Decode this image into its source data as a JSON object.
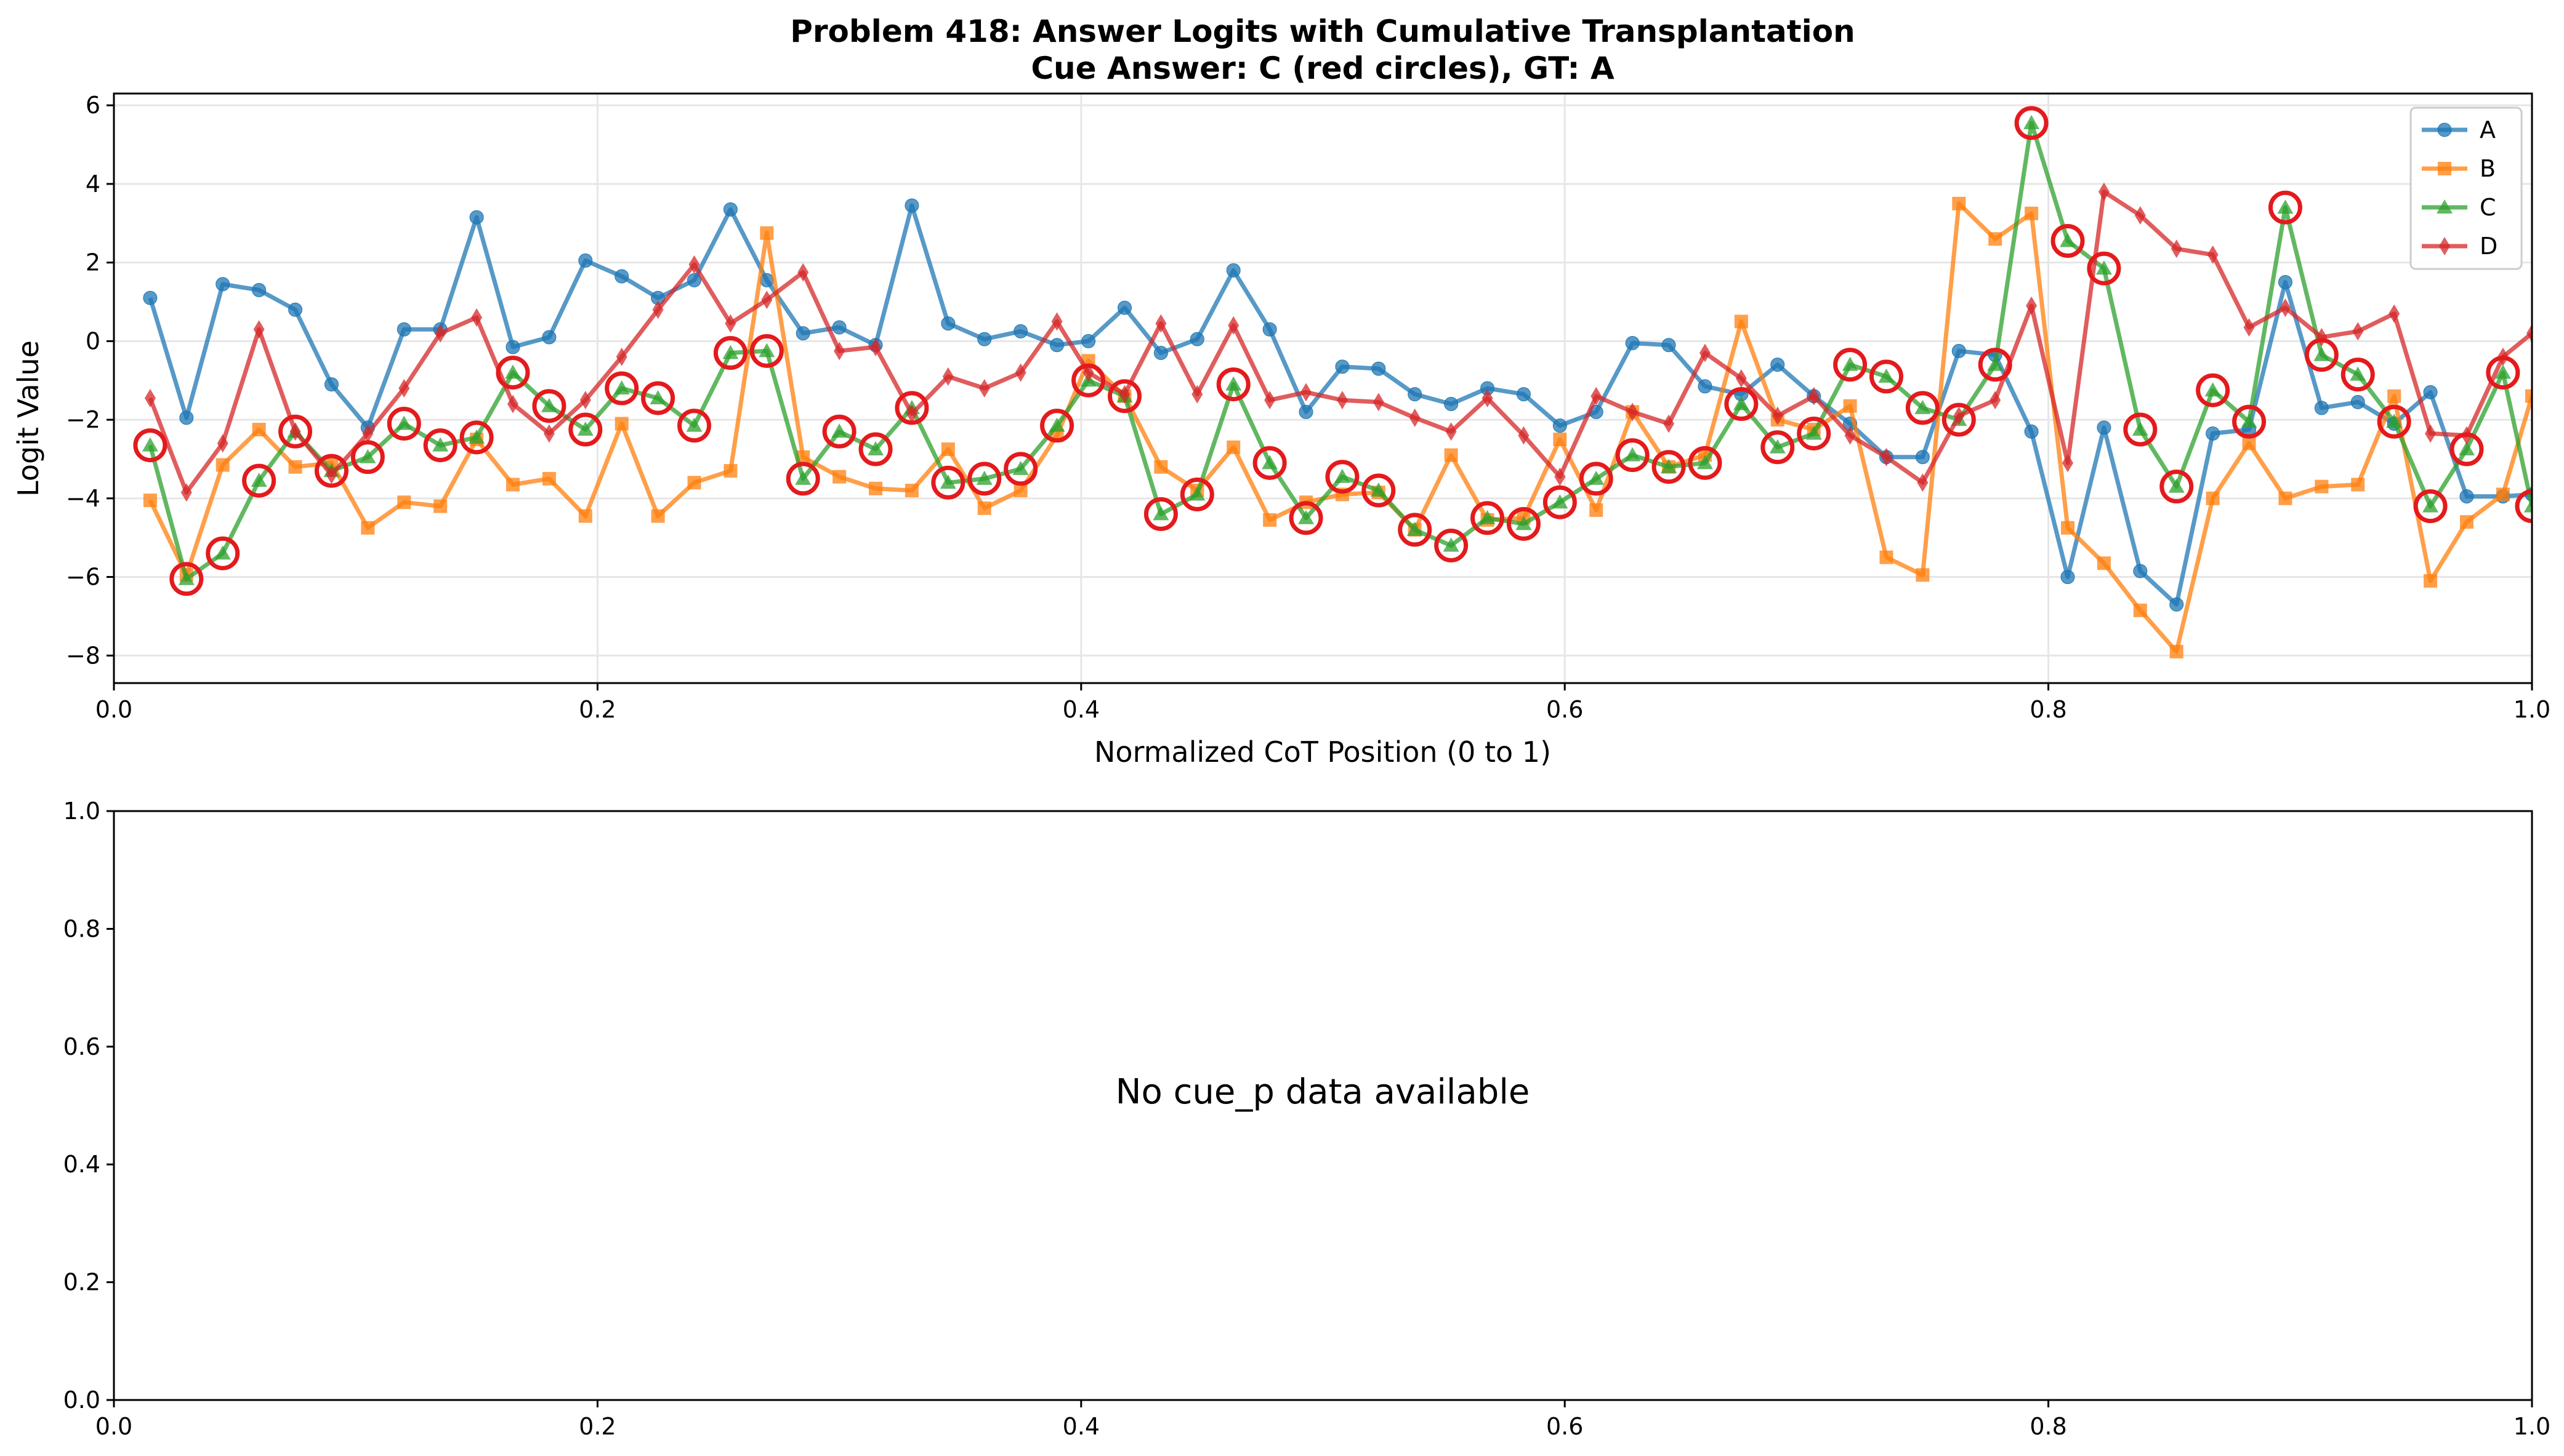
{
  "chart_data": [
    {
      "type": "line",
      "title": "Problem 418: Answer Logits with Cumulative Transplantation",
      "subtitle": "Cue Answer: C (red circles), GT: A",
      "xlabel": "Normalized CoT Position (0 to 1)",
      "ylabel": "Logit Value",
      "xlim": [
        0,
        1
      ],
      "ylim": [
        -8.7,
        6.3
      ],
      "xticks": [
        0.0,
        0.2,
        0.4,
        0.6,
        0.8,
        1.0
      ],
      "xtick_labels": [
        "0.0",
        "0.2",
        "0.4",
        "0.6",
        "0.8",
        "1.0"
      ],
      "yticks": [
        -8,
        -6,
        -4,
        -2,
        0,
        2,
        4,
        6
      ],
      "ytick_labels": [
        "−8",
        "−6",
        "−4",
        "−2",
        "0",
        "2",
        "4",
        "6"
      ],
      "grid": true,
      "legend": "top-right",
      "highlight": {
        "series": "C",
        "marker": "red circle",
        "color": "#e41a1c"
      },
      "x": [
        0.015,
        0.03,
        0.045,
        0.06,
        0.075,
        0.09,
        0.105,
        0.12,
        0.135,
        0.15,
        0.165,
        0.18,
        0.195,
        0.21,
        0.225,
        0.24,
        0.255,
        0.27,
        0.285,
        0.3,
        0.315,
        0.33,
        0.345,
        0.36,
        0.375,
        0.39,
        0.403,
        0.418,
        0.433,
        0.448,
        0.463,
        0.478,
        0.493,
        0.508,
        0.523,
        0.538,
        0.553,
        0.568,
        0.583,
        0.598,
        0.613,
        0.628,
        0.643,
        0.658,
        0.673,
        0.688,
        0.703,
        0.718,
        0.733,
        0.748,
        0.763,
        0.778,
        0.793,
        0.808,
        0.823,
        0.838,
        0.853,
        0.868,
        0.883,
        0.898,
        0.913,
        0.928,
        0.943,
        0.958,
        0.973,
        0.988,
        1.0
      ],
      "series": [
        {
          "name": "A",
          "color": "#1f77b4",
          "marker": "circle",
          "values": [
            1.1,
            -1.95,
            1.45,
            1.3,
            0.8,
            -1.1,
            -2.2,
            0.3,
            0.3,
            3.15,
            -0.15,
            0.1,
            2.05,
            1.65,
            1.1,
            1.55,
            3.35,
            1.55,
            0.2,
            0.35,
            -0.1,
            3.45,
            0.45,
            0.05,
            0.25,
            -0.1,
            0.0,
            0.85,
            -0.3,
            0.05,
            1.8,
            0.3,
            -1.8,
            -0.65,
            -0.7,
            -1.35,
            -1.6,
            -1.2,
            -1.35,
            -2.15,
            -1.8,
            -0.05,
            -0.1,
            -1.15,
            -1.35,
            -0.6,
            -1.4,
            -2.1,
            -2.95,
            -2.95,
            -0.25,
            -0.35,
            -2.3,
            -6.0,
            -2.2,
            -5.85,
            -6.7,
            -2.35,
            -2.25,
            1.5,
            -1.7,
            -1.55,
            -2.1,
            -1.3,
            -3.95,
            -3.95,
            -3.9
          ]
        },
        {
          "name": "B",
          "color": "#ff7f0e",
          "marker": "square",
          "values": [
            -4.05,
            -5.95,
            -3.15,
            -2.25,
            -3.2,
            -3.1,
            -4.75,
            -4.1,
            -4.2,
            -2.5,
            -3.65,
            -3.5,
            -4.45,
            -2.1,
            -4.45,
            -3.6,
            -3.3,
            2.75,
            -2.95,
            -3.45,
            -3.75,
            -3.8,
            -2.75,
            -4.25,
            -3.8,
            -2.4,
            -0.5,
            -1.4,
            -3.2,
            -3.8,
            -2.7,
            -4.55,
            -4.1,
            -3.9,
            -3.85,
            -4.8,
            -2.9,
            -4.55,
            -4.5,
            -2.5,
            -4.3,
            -1.8,
            -3.2,
            -2.9,
            0.5,
            -2.0,
            -2.25,
            -1.65,
            -5.5,
            -5.95,
            3.5,
            2.6,
            3.25,
            -4.75,
            -5.65,
            -6.85,
            -7.9,
            -4.0,
            -2.6,
            -4.0,
            -3.7,
            -3.65,
            -1.4,
            -6.1,
            -4.6,
            -3.9,
            -1.4
          ]
        },
        {
          "name": "C",
          "color": "#2ca02c",
          "marker": "triangle",
          "values": [
            -2.65,
            -6.05,
            -5.4,
            -3.55,
            -2.3,
            -3.3,
            -2.95,
            -2.1,
            -2.65,
            -2.45,
            -0.8,
            -1.65,
            -2.25,
            -1.2,
            -1.45,
            -2.15,
            -0.3,
            -0.25,
            -3.5,
            -2.3,
            -2.75,
            -1.7,
            -3.6,
            -3.5,
            -3.25,
            -2.15,
            -1.0,
            -1.4,
            -4.4,
            -3.9,
            -1.1,
            -3.1,
            -4.5,
            -3.45,
            -3.8,
            -4.8,
            -5.2,
            -4.5,
            -4.65,
            -4.1,
            -3.5,
            -2.9,
            -3.2,
            -3.1,
            -1.6,
            -2.7,
            -2.35,
            -0.6,
            -0.9,
            -1.7,
            -2.0,
            -0.6,
            5.55,
            2.55,
            1.85,
            -2.25,
            -3.7,
            -1.25,
            -2.05,
            3.4,
            -0.35,
            -0.85,
            -2.05,
            -4.2,
            -2.75,
            -0.8,
            -4.2
          ]
        },
        {
          "name": "D",
          "color": "#d62728",
          "marker": "diamond",
          "values": [
            -1.45,
            -3.85,
            -2.6,
            0.3,
            -2.3,
            -3.4,
            -2.35,
            -1.2,
            0.2,
            0.6,
            -1.6,
            -2.35,
            -1.5,
            -0.4,
            0.8,
            1.95,
            0.45,
            1.05,
            1.75,
            -0.25,
            -0.15,
            -1.85,
            -0.9,
            -1.2,
            -0.8,
            0.5,
            -0.8,
            -1.35,
            0.45,
            -1.35,
            0.4,
            -1.5,
            -1.3,
            -1.5,
            -1.55,
            -1.95,
            -2.3,
            -1.45,
            -2.4,
            -3.45,
            -1.4,
            -1.8,
            -2.1,
            -0.3,
            -0.95,
            -1.9,
            -1.4,
            -2.4,
            -2.95,
            -3.6,
            -1.9,
            -1.5,
            0.9,
            -3.1,
            3.8,
            3.2,
            2.35,
            2.2,
            0.35,
            0.85,
            0.1,
            0.25,
            0.7,
            -2.35,
            -2.4,
            -0.4,
            0.2
          ]
        }
      ]
    },
    {
      "type": "line",
      "message": "No cue_p data available",
      "xlim": [
        0,
        1
      ],
      "ylim": [
        0,
        1
      ],
      "xticks": [
        0.0,
        0.2,
        0.4,
        0.6,
        0.8,
        1.0
      ],
      "xtick_labels": [
        "0.0",
        "0.2",
        "0.4",
        "0.6",
        "0.8",
        "1.0"
      ],
      "yticks": [
        0.0,
        0.2,
        0.4,
        0.6,
        0.8,
        1.0
      ],
      "ytick_labels": [
        "0.0",
        "0.2",
        "0.4",
        "0.6",
        "0.8",
        "1.0"
      ],
      "grid": false
    }
  ]
}
